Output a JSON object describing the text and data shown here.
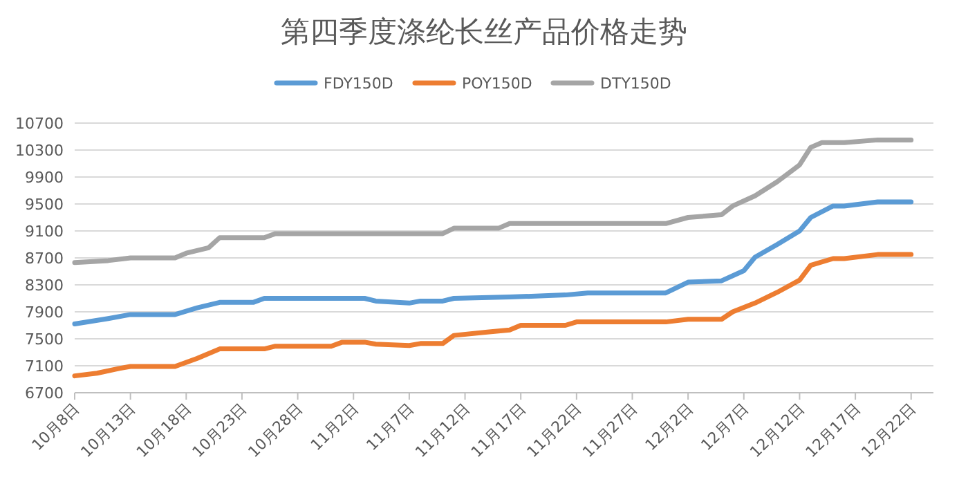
{
  "chart_data": {
    "type": "line",
    "title": "第四季度涤纶长丝产品价格走势",
    "series": [
      {
        "name": "FDY150D",
        "color": "#5b9bd5",
        "x": [
          "--10-08",
          "--10-11",
          "--10-13",
          "--10-17",
          "--10-19",
          "--10-21",
          "--10-24",
          "--10-25",
          "--11-03",
          "--11-04",
          "--11-07",
          "--11-08",
          "--11-10",
          "--11-11",
          "--11-16",
          "--11-21",
          "--11-23",
          "--11-30",
          "--12-02",
          "--12-05",
          "--12-07",
          "--12-08",
          "--12-10",
          "--12-12",
          "--12-13",
          "--12-15",
          "--12-16",
          "--12-19",
          "--12-22"
        ],
        "values": [
          7720,
          7800,
          7860,
          7860,
          7960,
          8040,
          8040,
          8100,
          8100,
          8060,
          8030,
          8060,
          8060,
          8100,
          8120,
          8150,
          8180,
          8180,
          8340,
          8360,
          8510,
          8710,
          8900,
          9100,
          9300,
          9470,
          9470,
          9530,
          9530
        ]
      },
      {
        "name": "POY150D",
        "color": "#ed7d31",
        "x": [
          "--10-08",
          "--10-10",
          "--10-12",
          "--10-13",
          "--10-17",
          "--10-19",
          "--10-21",
          "--10-25",
          "--10-26",
          "--10-31",
          "--11-01",
          "--11-03",
          "--11-04",
          "--11-07",
          "--11-08",
          "--11-10",
          "--11-11",
          "--11-14",
          "--11-16",
          "--11-17",
          "--11-21",
          "--11-22",
          "--11-30",
          "--12-02",
          "--12-05",
          "--12-06",
          "--12-08",
          "--12-10",
          "--12-12",
          "--12-13",
          "--12-15",
          "--12-16",
          "--12-19",
          "--12-22"
        ],
        "values": [
          6950,
          6990,
          7060,
          7090,
          7090,
          7210,
          7350,
          7350,
          7390,
          7390,
          7450,
          7450,
          7420,
          7400,
          7430,
          7430,
          7550,
          7600,
          7630,
          7700,
          7700,
          7750,
          7750,
          7790,
          7790,
          7900,
          8030,
          8190,
          8370,
          8590,
          8690,
          8690,
          8750,
          8750
        ]
      },
      {
        "name": "DTY150D",
        "color": "#a5a5a5",
        "x": [
          "--10-08",
          "--10-11",
          "--10-13",
          "--10-17",
          "--10-18",
          "--10-20",
          "--10-21",
          "--10-25",
          "--10-26",
          "--11-10",
          "--11-11",
          "--11-15",
          "--11-16",
          "--11-30",
          "--12-02",
          "--12-05",
          "--12-06",
          "--12-08",
          "--12-10",
          "--12-12",
          "--12-13",
          "--12-14",
          "--12-16",
          "--12-19",
          "--12-22"
        ],
        "values": [
          8630,
          8660,
          8700,
          8700,
          8770,
          8850,
          9000,
          9000,
          9060,
          9060,
          9140,
          9140,
          9210,
          9210,
          9300,
          9340,
          9470,
          9620,
          9830,
          10080,
          10340,
          10410,
          10410,
          10450,
          10450
        ]
      }
    ],
    "xlim": [
      "--10-08",
      "--12-24"
    ],
    "xticks": [
      {
        "value": "--10-08",
        "label": "10月8日"
      },
      {
        "value": "--10-13",
        "label": "10月13日"
      },
      {
        "value": "--10-18",
        "label": "10月18日"
      },
      {
        "value": "--10-23",
        "label": "10月23日"
      },
      {
        "value": "--10-28",
        "label": "10月28日"
      },
      {
        "value": "--11-02",
        "label": "11月2日"
      },
      {
        "value": "--11-07",
        "label": "11月7日"
      },
      {
        "value": "--11-12",
        "label": "11月12日"
      },
      {
        "value": "--11-17",
        "label": "11月17日"
      },
      {
        "value": "--11-22",
        "label": "11月22日"
      },
      {
        "value": "--11-27",
        "label": "11月27日"
      },
      {
        "value": "--12-02",
        "label": "12月2日"
      },
      {
        "value": "--12-07",
        "label": "12月7日"
      },
      {
        "value": "--12-12",
        "label": "12月12日"
      },
      {
        "value": "--12-17",
        "label": "12月17日"
      },
      {
        "value": "--12-22",
        "label": "12月22日"
      }
    ],
    "ylim": [
      6700,
      10700
    ],
    "yticks": [
      6700,
      7100,
      7500,
      7900,
      8300,
      8700,
      9100,
      9500,
      9900,
      10300,
      10700
    ],
    "grid": "y",
    "legend": "top"
  }
}
